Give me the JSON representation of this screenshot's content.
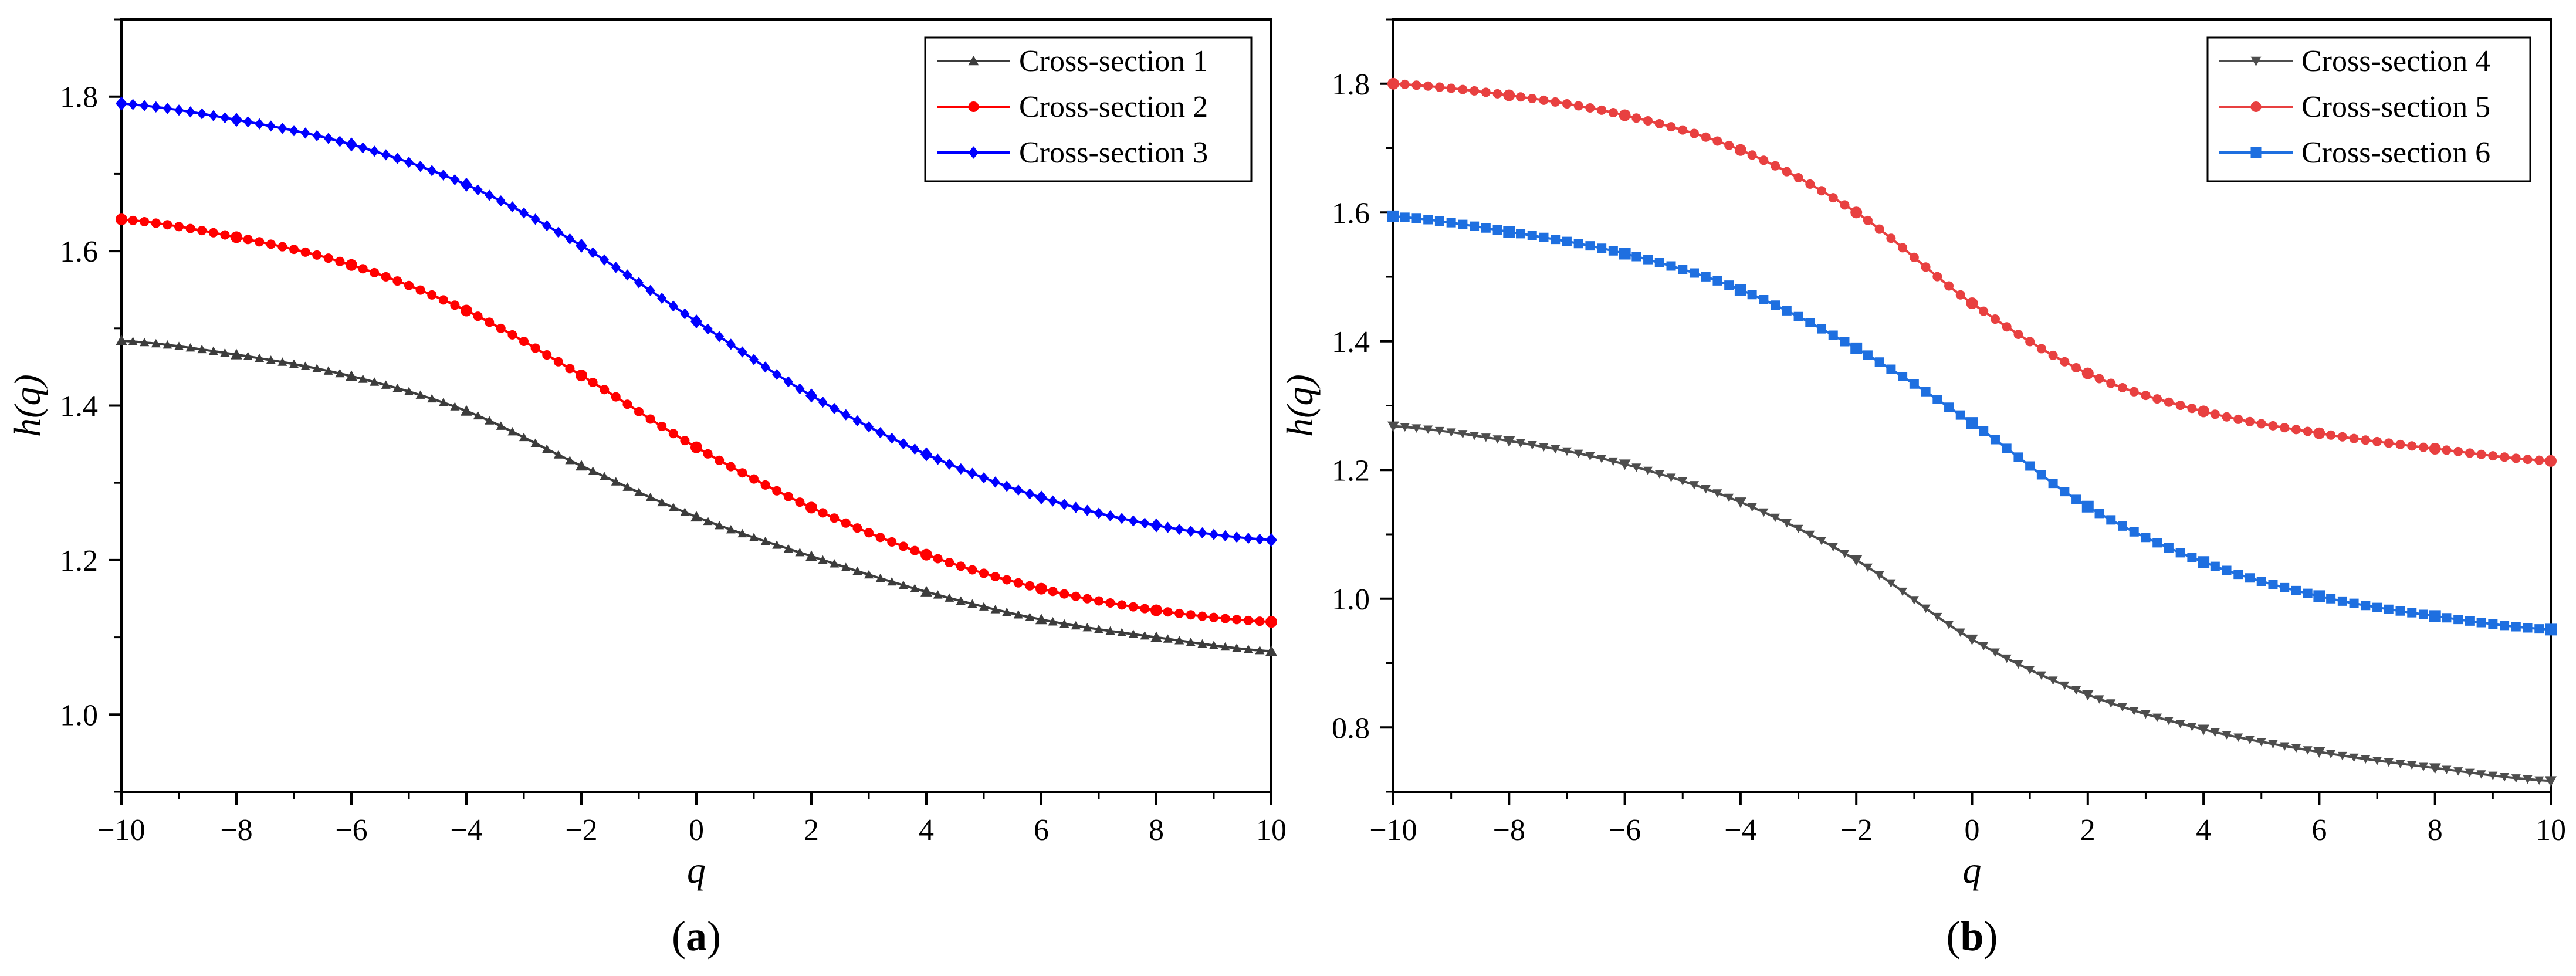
{
  "chart_data": [
    {
      "type": "line",
      "panel_label": "(a)",
      "panel_letter": "a",
      "title": "",
      "xlabel": "q",
      "ylabel": "h(q)",
      "xlim": [
        -10,
        10
      ],
      "ylim": [
        0.9,
        1.9
      ],
      "xticks": [
        -10,
        -8,
        -6,
        -4,
        -2,
        0,
        2,
        4,
        6,
        8,
        10
      ],
      "xtick_labels": [
        "−10",
        "−8",
        "−6",
        "−4",
        "−2",
        "0",
        "2",
        "4",
        "6",
        "8",
        "10"
      ],
      "yticks": [
        1.0,
        1.2,
        1.4,
        1.6,
        1.8
      ],
      "ytick_labels": [
        "1.0",
        "1.2",
        "1.4",
        "1.6",
        "1.8"
      ],
      "legend_position": "top-right",
      "x": [
        -10,
        -8,
        -6,
        -4,
        -2,
        0,
        2,
        4,
        6,
        8,
        10
      ],
      "series": [
        {
          "name": "Cross-section 1",
          "color": "#3c3c3c",
          "marker": "triangle-up",
          "values": [
            1.484,
            1.466,
            1.438,
            1.393,
            1.322,
            1.256,
            1.205,
            1.159,
            1.123,
            1.1,
            1.082
          ]
        },
        {
          "name": "Cross-section 2",
          "color": "#ff0000",
          "marker": "circle",
          "values": [
            1.641,
            1.618,
            1.582,
            1.523,
            1.439,
            1.346,
            1.268,
            1.207,
            1.163,
            1.135,
            1.12
          ]
        },
        {
          "name": "Cross-section 3",
          "color": "#0000ff",
          "marker": "diamond",
          "values": [
            1.791,
            1.77,
            1.738,
            1.686,
            1.607,
            1.509,
            1.413,
            1.337,
            1.281,
            1.245,
            1.226
          ]
        }
      ]
    },
    {
      "type": "line",
      "panel_label": "(b)",
      "panel_letter": "b",
      "title": "",
      "xlabel": "q",
      "ylabel": "h(q)",
      "xlim": [
        -10,
        10
      ],
      "ylim": [
        0.7,
        1.9
      ],
      "xticks": [
        -10,
        -8,
        -6,
        -4,
        -2,
        0,
        2,
        4,
        6,
        8,
        10
      ],
      "xtick_labels": [
        "−10",
        "−8",
        "−6",
        "−4",
        "−2",
        "0",
        "2",
        "4",
        "6",
        "8",
        "10"
      ],
      "yticks": [
        0.8,
        1.0,
        1.2,
        1.4,
        1.6,
        1.8
      ],
      "ytick_labels": [
        "0.8",
        "1.0",
        "1.2",
        "1.4",
        "1.6",
        "1.8"
      ],
      "legend_position": "top-right",
      "x": [
        -10,
        -8,
        -6,
        -4,
        -2,
        0,
        2,
        4,
        6,
        8,
        10
      ],
      "series": [
        {
          "name": "Cross-section 4",
          "color": "#4d4d4d",
          "marker": "triangle-down",
          "values": [
            1.268,
            1.245,
            1.209,
            1.15,
            1.06,
            0.937,
            0.851,
            0.797,
            0.762,
            0.737,
            0.717
          ]
        },
        {
          "name": "Cross-section 5",
          "color": "#e84040",
          "marker": "circle",
          "values": [
            1.8,
            1.782,
            1.751,
            1.697,
            1.6,
            1.459,
            1.35,
            1.291,
            1.257,
            1.233,
            1.214
          ]
        },
        {
          "name": "Cross-section 6",
          "color": "#1e6fe0",
          "marker": "square",
          "values": [
            1.594,
            1.57,
            1.536,
            1.48,
            1.389,
            1.273,
            1.143,
            1.057,
            1.004,
            0.973,
            0.952
          ]
        }
      ]
    }
  ]
}
